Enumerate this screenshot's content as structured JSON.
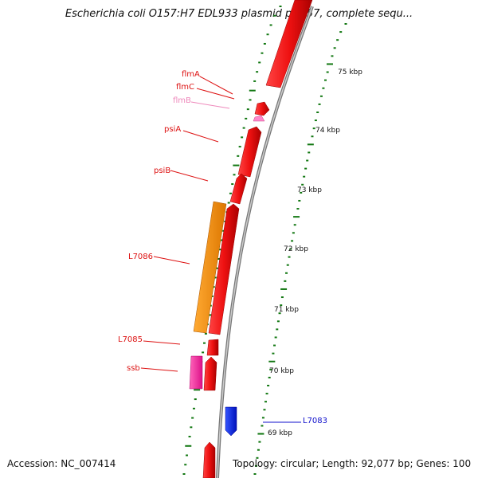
{
  "title": "Escherichia coli O157:H7 EDL933 plasmid pO157, complete sequ...",
  "footer": {
    "accession": "Accession: NC_007414",
    "summary": "Topology: circular; Length: 92,077 bp; Genes: 100"
  },
  "scale_labels": [
    "75 kbp",
    "74 kbp",
    "73 kbp",
    "72 kbp",
    "71 kbp",
    "70 kbp",
    "69 kbp"
  ],
  "gene_labels": [
    {
      "name": "flmA",
      "color": "#dd1111"
    },
    {
      "name": "flmC",
      "color": "#dd1111"
    },
    {
      "name": "flmB",
      "color": "#ee88bb"
    },
    {
      "name": "psiA",
      "color": "#dd1111"
    },
    {
      "name": "psiB",
      "color": "#dd1111"
    },
    {
      "name": "L7086",
      "color": "#dd1111"
    },
    {
      "name": "L7085",
      "color": "#dd1111"
    },
    {
      "name": "ssb",
      "color": "#dd1111"
    },
    {
      "name": "L7083",
      "color": "#1111cc"
    }
  ],
  "colors": {
    "gene_red": "#ee1111",
    "gene_orange": "#ff8800",
    "gene_pink": "#ff3399",
    "gene_lightpink": "#ff99cc",
    "gene_blue": "#0022ee",
    "backbone": "#888888",
    "ticks": "#117711"
  }
}
